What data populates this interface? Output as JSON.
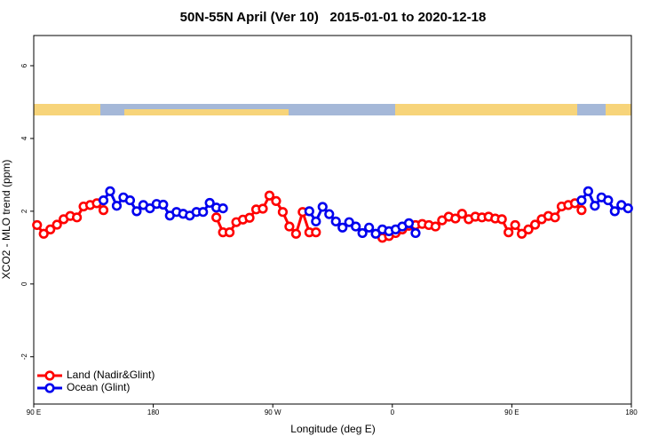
{
  "chart_data": {
    "type": "line",
    "title": "50N-55N April (Ver 10)   2015-01-01 to 2020-12-18",
    "x_label": "Longitude (deg E)",
    "y_label": "XCO2 - MLO trend (ppm)",
    "x": [
      92.5,
      97.5,
      102.5,
      107.5,
      112.5,
      117.5,
      122.5,
      127.5,
      132.5,
      137.5,
      142.5,
      147.5,
      152.5,
      157.5,
      162.5,
      167.5,
      172.5,
      177.5,
      182.5,
      187.5,
      192.5,
      197.5,
      202.5,
      207.5,
      212.5,
      217.5,
      222.5,
      227.5,
      232.5,
      237.5,
      242.5,
      247.5,
      252.5,
      257.5,
      262.5,
      267.5,
      272.5,
      277.5,
      282.5,
      287.5,
      292.5,
      297.5,
      302.5,
      307.5,
      312.5,
      317.5,
      322.5,
      327.5,
      332.5,
      337.5,
      342.5,
      347.5,
      352.5,
      357.5,
      362.5,
      367.5,
      372.5,
      377.5,
      382.5,
      387.5,
      392.5,
      397.5,
      402.5,
      407.5,
      412.5,
      417.5,
      422.5,
      427.5,
      432.5,
      437.5,
      442.5,
      447.5,
      452.5,
      457.5,
      462.5,
      467.5,
      472.5,
      477.5,
      482.5,
      487.5,
      492.5,
      497.5,
      502.5,
      507.5,
      512.5,
      517.5,
      522.5,
      527.5,
      532.5,
      537.5
    ],
    "series": [
      {
        "name": "Land (Nadir&Glint)",
        "color": "#ff0000",
        "values": [
          1.62,
          1.38,
          1.5,
          1.63,
          1.78,
          1.87,
          1.83,
          2.13,
          2.17,
          2.22,
          2.03,
          null,
          null,
          null,
          null,
          null,
          null,
          null,
          null,
          null,
          null,
          null,
          null,
          null,
          null,
          null,
          null,
          1.83,
          1.42,
          1.42,
          1.7,
          1.77,
          1.82,
          2.05,
          2.07,
          2.43,
          2.28,
          1.98,
          1.58,
          1.38,
          1.98,
          1.42,
          1.42,
          null,
          null,
          null,
          null,
          null,
          null,
          null,
          null,
          null,
          1.27,
          1.32,
          1.4,
          1.5,
          1.6,
          1.62,
          1.65,
          1.62,
          1.58,
          1.75,
          1.85,
          1.8,
          1.93,
          1.78,
          1.85,
          1.83,
          1.85,
          1.8,
          1.78,
          1.42,
          1.62,
          1.38,
          1.5,
          1.63,
          1.78,
          1.87,
          1.83,
          2.13,
          2.17,
          2.22,
          2.03,
          null,
          null,
          null,
          null,
          null,
          null,
          null
        ]
      },
      {
        "name": "Ocean (Glint)",
        "color": "#0000ee",
        "values": [
          null,
          null,
          null,
          null,
          null,
          null,
          null,
          null,
          null,
          null,
          2.3,
          2.55,
          2.15,
          2.38,
          2.3,
          2.0,
          2.17,
          2.08,
          2.2,
          2.18,
          1.88,
          1.98,
          1.93,
          1.88,
          1.98,
          1.98,
          2.23,
          2.1,
          2.08,
          null,
          null,
          null,
          null,
          null,
          null,
          null,
          null,
          null,
          null,
          null,
          null,
          2.0,
          1.72,
          2.12,
          1.92,
          1.72,
          1.55,
          1.7,
          1.58,
          1.4,
          1.55,
          1.38,
          1.5,
          1.45,
          1.5,
          1.58,
          1.67,
          1.4,
          null,
          null,
          null,
          null,
          null,
          null,
          null,
          null,
          null,
          null,
          null,
          null,
          null,
          null,
          null,
          null,
          null,
          null,
          null,
          null,
          null,
          null,
          null,
          null,
          2.3,
          2.55,
          2.15,
          2.38,
          2.3,
          2.0,
          2.17,
          2.08
        ]
      }
    ],
    "xlim": [
      90,
      540
    ],
    "ylim": [
      -3.3,
      6.83
    ],
    "xticks": [
      {
        "value": 90,
        "label": "90 E"
      },
      180,
      {
        "value": 270,
        "label": "90 W"
      },
      {
        "value": 360,
        "label": "0"
      },
      {
        "value": 450,
        "label": "90 E"
      },
      {
        "value": 540,
        "label": "180"
      }
    ],
    "yticks": [
      -2,
      0,
      2,
      4,
      6
    ],
    "legend": "bottom-left"
  }
}
